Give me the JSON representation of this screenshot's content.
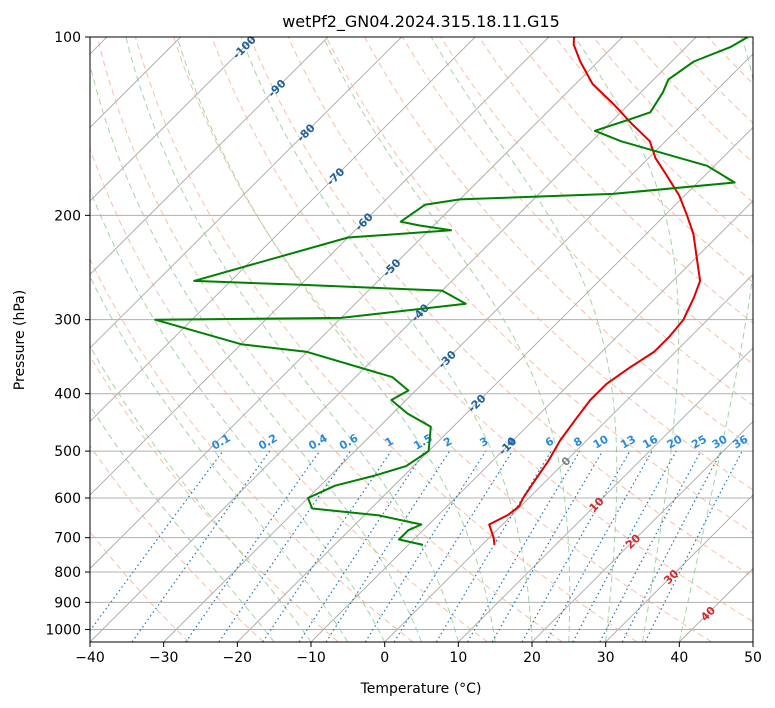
{
  "chart_data": {
    "type": "line",
    "title": "wetPf2_GN04.2024.315.18.11.G15",
    "xlabel": "Temperature (°C)",
    "ylabel": "Pressure (hPa)",
    "xlim": [
      -40,
      50
    ],
    "ylim": [
      1050,
      100
    ],
    "y_scale": "log",
    "skew": true,
    "grid": true,
    "x_ticks": [
      "−40",
      "−30",
      "−20",
      "−10",
      "0",
      "10",
      "20",
      "30",
      "40",
      "50"
    ],
    "x_tick_values": [
      -40,
      -30,
      -20,
      -10,
      0,
      10,
      20,
      30,
      40,
      50
    ],
    "y_ticks": [
      "100",
      "200",
      "300",
      "400",
      "500",
      "600",
      "700",
      "800",
      "900",
      "1000"
    ],
    "y_tick_values": [
      100,
      200,
      300,
      400,
      500,
      600,
      700,
      800,
      900,
      1000
    ],
    "colors": {
      "temperature": "#e00000",
      "dewpoint": "#008000",
      "isotherm": "#b0b0b0",
      "dry_adiabat": "#f4a582",
      "moist_adiabat": "#8fc98f",
      "mixing_ratio": "#1f77b4",
      "isotherm_label": "#1f5f9f",
      "mixing_label": "#2a8ae0",
      "warm_label": "#d62728"
    },
    "series": [
      {
        "key": "temperature",
        "points": [
          [
            1.7,
            720
          ],
          [
            0.6,
            700
          ],
          [
            -1.8,
            665
          ],
          [
            -0.5,
            640
          ],
          [
            -0.2,
            620
          ],
          [
            -0.8,
            600
          ],
          [
            -1.6,
            560
          ],
          [
            -2.4,
            520
          ],
          [
            -3.6,
            480
          ],
          [
            -4.4,
            440
          ],
          [
            -5.0,
            410
          ],
          [
            -5.0,
            385
          ],
          [
            -4.0,
            360
          ],
          [
            -2.9,
            340
          ],
          [
            -2.9,
            320
          ],
          [
            -3.3,
            300
          ],
          [
            -4.9,
            275
          ],
          [
            -6.3,
            258
          ],
          [
            -9.2,
            240
          ],
          [
            -13.6,
            215
          ],
          [
            -17.0,
            200
          ],
          [
            -20.8,
            185
          ],
          [
            -25.6,
            170
          ],
          [
            -29.1,
            160
          ],
          [
            -32.1,
            150
          ],
          [
            -37.0,
            140
          ],
          [
            -42.0,
            130
          ],
          [
            -47.7,
            120
          ],
          [
            -52.4,
            110
          ],
          [
            -55.6,
            103
          ],
          [
            -56.6,
            100
          ]
        ]
      },
      {
        "key": "dewpoint",
        "points": [
          [
            -8.0,
            720
          ],
          [
            -12.0,
            705
          ],
          [
            -12.0,
            680
          ],
          [
            -11.0,
            665
          ],
          [
            -18.0,
            642
          ],
          [
            -28.0,
            625
          ],
          [
            -30.0,
            600
          ],
          [
            -28.0,
            572
          ],
          [
            -24.0,
            550
          ],
          [
            -21.0,
            530
          ],
          [
            -20.0,
            500
          ],
          [
            -23.0,
            455
          ],
          [
            -28.0,
            432
          ],
          [
            -32.0,
            410
          ],
          [
            -31.0,
            395
          ],
          [
            -35.0,
            375
          ],
          [
            -50.0,
            340
          ],
          [
            -60.0,
            330
          ],
          [
            -75.0,
            300
          ],
          [
            -50.0,
            298
          ],
          [
            -35.0,
            282
          ],
          [
            -40.0,
            268
          ],
          [
            -60.0,
            262
          ],
          [
            -75.0,
            258
          ],
          [
            -60.0,
            218
          ],
          [
            -47.0,
            212
          ],
          [
            -52.0,
            208
          ],
          [
            -55.0,
            205
          ],
          [
            -54.0,
            192
          ],
          [
            -50.0,
            188
          ],
          [
            -30.0,
            184
          ],
          [
            -15.0,
            176
          ],
          [
            -21.0,
            165
          ],
          [
            -36.0,
            150
          ],
          [
            -41.0,
            144
          ],
          [
            -38.0,
            138
          ],
          [
            -36.0,
            134
          ],
          [
            -37.0,
            124
          ],
          [
            -38.0,
            118
          ],
          [
            -37.0,
            110
          ],
          [
            -34.0,
            104
          ],
          [
            -33.0,
            100
          ]
        ]
      }
    ],
    "isotherm_labels": [
      "-100",
      "-90",
      "-80",
      "-70",
      "-60",
      "-50",
      "-40",
      "-30",
      "-20",
      "-10"
    ],
    "isotherm_label_values": [
      -100,
      -90,
      -80,
      -70,
      -60,
      -50,
      -40,
      -30,
      -20,
      -10
    ],
    "mixing_ratio_labels": [
      "0.1",
      "0.2",
      "0.4",
      "0.6",
      "1",
      "1.5",
      "2",
      "3",
      "4",
      "6",
      "8",
      "10",
      "13",
      "16",
      "20",
      "25",
      "30",
      "36"
    ],
    "mixing_ratio_values": [
      0.1,
      0.2,
      0.4,
      0.6,
      1,
      1.5,
      2,
      3,
      4,
      6,
      8,
      10,
      13,
      16,
      20,
      25,
      30,
      36
    ],
    "warm_labels": [
      "0",
      "10",
      "20",
      "30",
      "40"
    ],
    "warm_label_values": [
      0,
      10,
      20,
      30,
      40
    ]
  }
}
